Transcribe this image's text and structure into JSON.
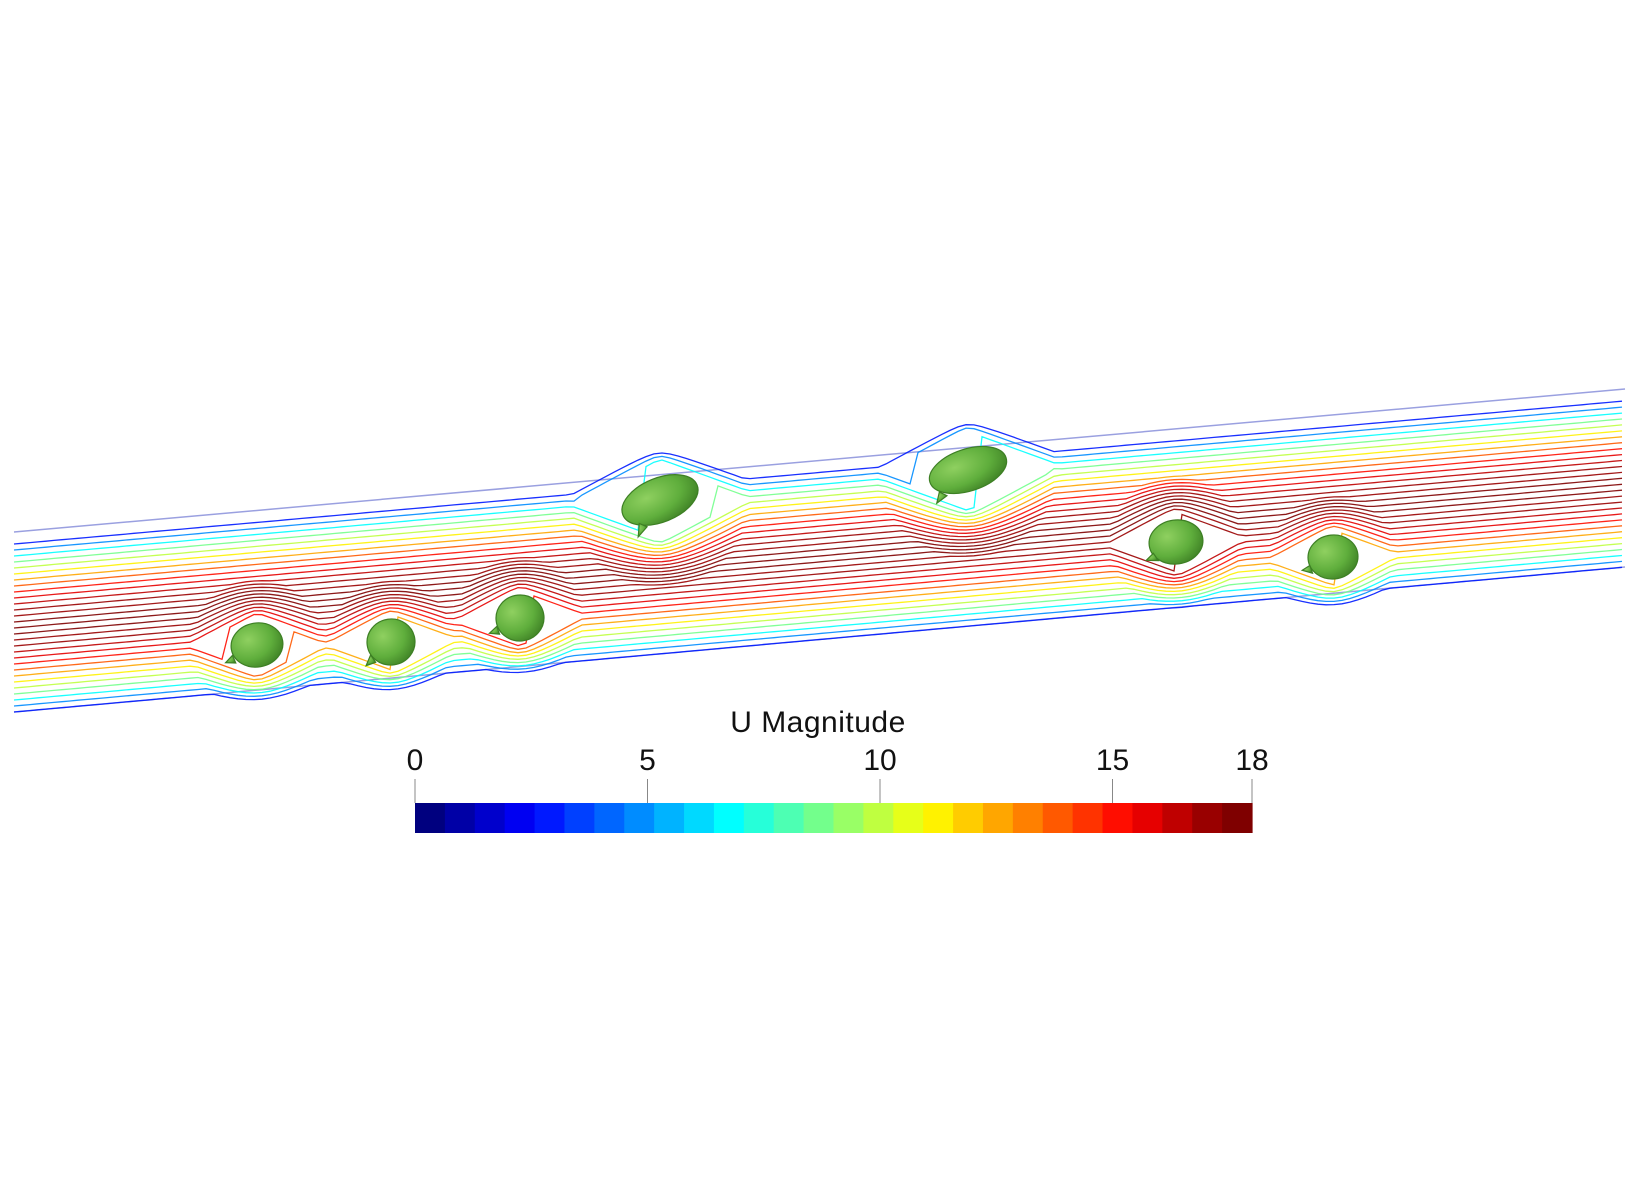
{
  "legend": {
    "title": "U Magnitude",
    "range": [
      0,
      18
    ],
    "ticks": [
      {
        "value": 0,
        "label": "0"
      },
      {
        "value": 5,
        "label": "5"
      },
      {
        "value": 10,
        "label": "10"
      },
      {
        "value": 15,
        "label": "15"
      },
      {
        "value": 18,
        "label": "18"
      }
    ],
    "colors": [
      "#00007f",
      "#0000a6",
      "#0000cc",
      "#0000f2",
      "#0019ff",
      "#0040ff",
      "#0066ff",
      "#008cff",
      "#00b3ff",
      "#00d9ff",
      "#00ffff",
      "#26ffd9",
      "#4dffb3",
      "#73ff8c",
      "#99ff66",
      "#bfff40",
      "#e6ff19",
      "#fff200",
      "#ffcc00",
      "#ffa600",
      "#ff8000",
      "#ff5900",
      "#ff3300",
      "#ff0d00",
      "#e60000",
      "#bf0000",
      "#990000",
      "#7f0000"
    ]
  },
  "scene": {
    "description_colors": {
      "cell": "#5fae3c",
      "cell_edge": "#3d7f24",
      "channel_wall": "#9aa0e0"
    }
  }
}
